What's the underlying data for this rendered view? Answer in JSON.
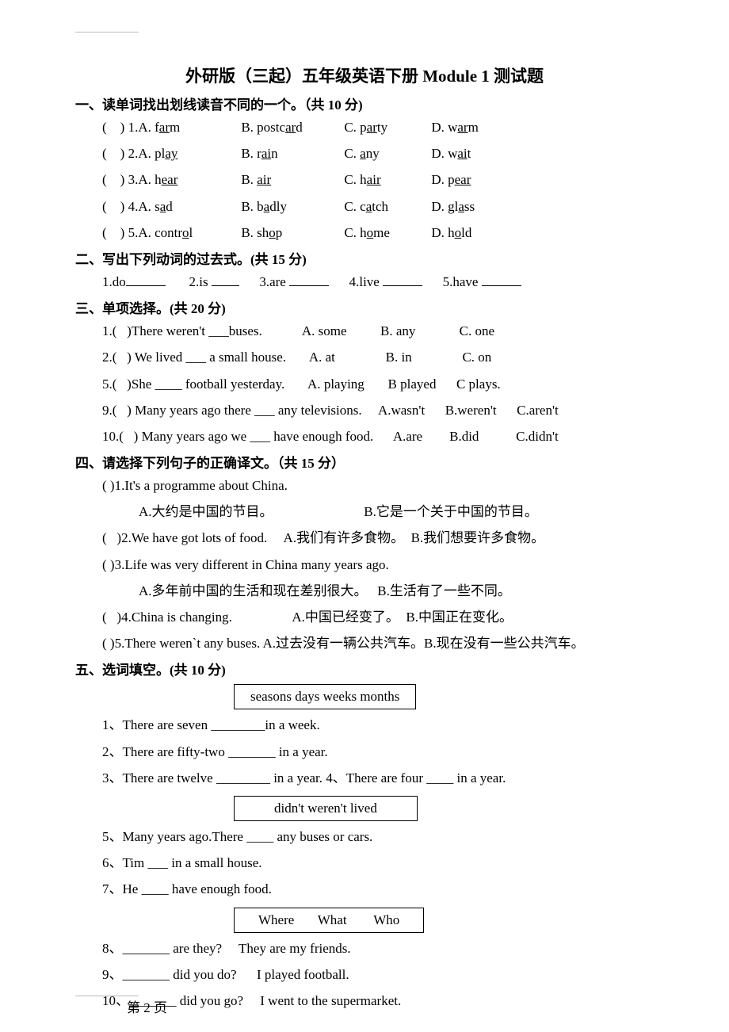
{
  "title": "外研版（三起）五年级英语下册 Module 1 测试题",
  "s1": {
    "header": "一、读单词找出划线读音不同的一个。（共 10 分)",
    "rows": [
      {
        "n": "1",
        "a_pre": "A. f",
        "a_u": "ar",
        "a_post": "m",
        "b_pre": "B. postc",
        "b_u": "ar",
        "b_post": "d",
        "c_pre": "C. p",
        "c_u": "ar",
        "c_post": "ty",
        "d_pre": "D. w",
        "d_u": "ar",
        "d_post": "m"
      },
      {
        "n": "2",
        "a_pre": "A. pl",
        "a_u": "ay",
        "a_post": "",
        "b_pre": "B. r",
        "b_u": "ai",
        "b_post": "n",
        "c_pre": "C. ",
        "c_u": "a",
        "c_post": "ny",
        "d_pre": "D. w",
        "d_u": "ai",
        "d_post": "t"
      },
      {
        "n": "3",
        "a_pre": "A. h",
        "a_u": "ear",
        "a_post": "",
        "b_pre": "B. ",
        "b_u": "air",
        "b_post": "",
        "c_pre": "C. h",
        "c_u": "air",
        "c_post": "",
        "d_pre": "D. p",
        "d_u": "ear",
        "d_post": ""
      },
      {
        "n": "4",
        "a_pre": "A. s",
        "a_u": "a",
        "a_post": "d",
        "b_pre": "B. b",
        "b_u": "a",
        "b_post": "dly",
        "c_pre": "C. c",
        "c_u": "a",
        "c_post": "tch",
        "d_pre": "D. gl",
        "d_u": "a",
        "d_post": "ss"
      },
      {
        "n": "5",
        "a_pre": "A. contr",
        "a_u": "o",
        "a_post": "l",
        "b_pre": "B. sh",
        "b_u": "o",
        "b_post": "p",
        "c_pre": "C. h",
        "c_u": "o",
        "c_post": "me",
        "d_pre": "D. h",
        "d_u": "o",
        "d_post": "ld"
      }
    ]
  },
  "s2": {
    "header": "二、写出下列动词的过去式。(共 15 分)",
    "items": [
      "1.do",
      "2.is",
      "3.are",
      "4.live",
      "5.have"
    ]
  },
  "s3": {
    "header": "三、单项选择。(共 20 分)",
    "lines": [
      "1.(   )There weren't ___buses.            A. some          B. any             C. one",
      "2.(   ) We lived ___ a small house.       A. at               B. in               C. on",
      "5.(   )She ____ football yesterday.       A. playing       B played      C plays.",
      "9.(   ) Many years ago there ___ any televisions.     A.wasn't      B.weren't      C.aren't",
      "10.(   ) Many years ago we ___ have enough food.      A.are        B.did           C.didn't"
    ]
  },
  "s4": {
    "header": "四、请选择下列句子的正确译文。（共 15 分）",
    "q1": "(   )1.It's a programme about China.",
    "q1a": "A.大约是中国的节目。",
    "q1b": "B.它是一个关于中国的节目。",
    "q2": "(   )2.We have got lots of food.     A.我们有许多食物。  B.我们想要许多食物。",
    "q3": "(   )3.Life was very different in China many years ago.",
    "q3ab": "A.多年前中国的生活和现在差别很大。   B.生活有了一些不同。",
    "q4": "(   )4.China is changing.                  A.中国已经变了。  B.中国正在变化。",
    "q5": "(   )5.There weren`t any buses. A.过去没有一辆公共汽车。B.现在没有一些公共汽车。"
  },
  "s5": {
    "header": "五、选词填空。(共 10 分)",
    "box1": "seasons  days  weeks  months",
    "q1": "1、There are seven ________in a week.",
    "q2": "2、There are fifty-two _______ in a year.",
    "q3": "3、There are twelve ________ in a year. 4、There are four ____ in a year.",
    "box2": "didn't  weren't  lived",
    "q5": "5、Many years ago.There ____ any buses or cars.",
    "q6": "6、Tim ___ in a small house.",
    "q7": "7、He ____ have enough food.",
    "box3": "Where       What        Who",
    "q8": "8、_______ are they?     They are my friends.",
    "q9": "9、_______ did you do?      I played football.",
    "q10": "10、_______ did you go?     I went to the supermarket."
  },
  "footer": "第 2 页"
}
